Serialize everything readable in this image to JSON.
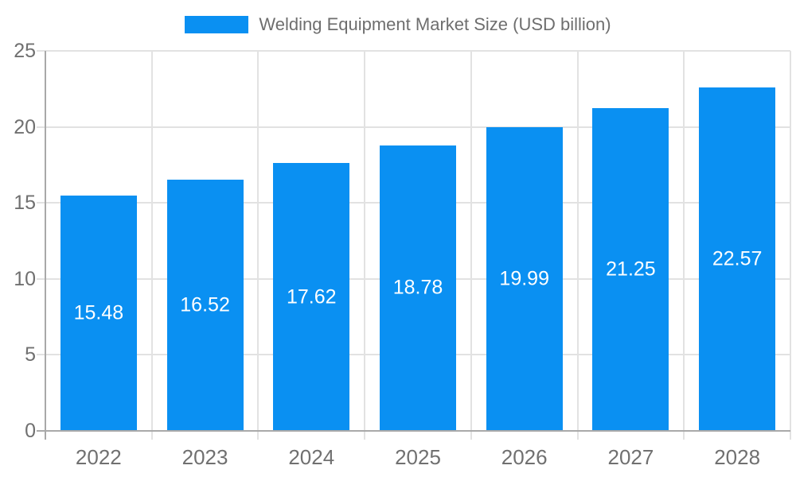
{
  "chart_data": {
    "type": "bar",
    "title": "Welding Equipment Market Size (USD billion)",
    "legend": {
      "position": "top",
      "items": [
        {
          "label": "Welding Equipment Market Size (USD billion)",
          "color": "#0A90F2"
        }
      ]
    },
    "categories": [
      "2022",
      "2023",
      "2024",
      "2025",
      "2026",
      "2027",
      "2028"
    ],
    "series": [
      {
        "name": "Welding Equipment Market Size (USD billion)",
        "values": [
          15.48,
          16.52,
          17.62,
          18.78,
          19.99,
          21.25,
          22.57
        ]
      }
    ],
    "value_labels": [
      "15.48",
      "16.52",
      "17.62",
      "18.78",
      "19.99",
      "21.25",
      "22.57"
    ],
    "xlabel": "",
    "ylabel": "",
    "ylim": [
      0,
      25
    ],
    "yticks": [
      0,
      5,
      10,
      15,
      20,
      25
    ],
    "grid": true,
    "value_label_position": "inside-center",
    "colors": {
      "bar": "#0A90F2",
      "grid": "#e2e2e2",
      "axis": "#a9a9a9",
      "tick_label": "#707070",
      "value_label": "#ffffff",
      "background": "#ffffff"
    }
  }
}
